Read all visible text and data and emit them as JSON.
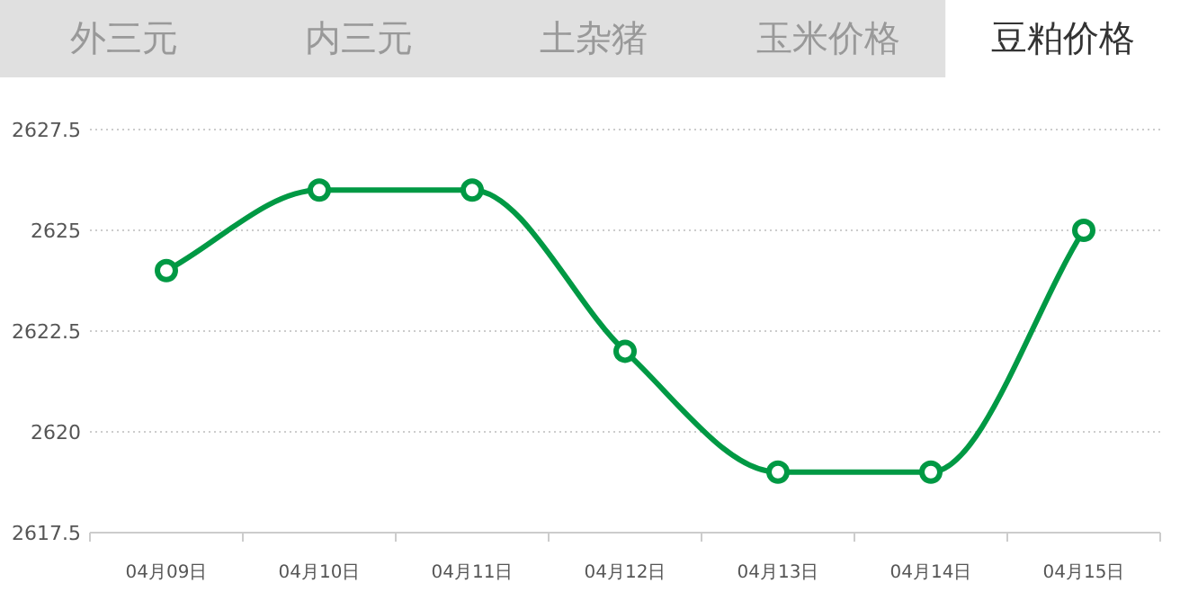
{
  "chart_data": [
    {
      "type": "other",
      "annotations": [
        "外三元",
        "内三元",
        "土杂猪",
        "玉米价格",
        "豆粕价格"
      ],
      "colors": [
        "#999999",
        "#999999",
        "#999999",
        "#999999",
        "#333333"
      ]
    },
    {
      "type": "line",
      "categories": [
        "04月09日",
        "04月10日",
        "04月11日",
        "04月12日",
        "04月13日",
        "04月14日",
        "04月15日"
      ],
      "series": [
        {
          "color": "#009944",
          "values": [
            2624,
            2626,
            2626,
            2622,
            2619,
            2619,
            2625
          ]
        }
      ],
      "ylim": [
        2617.5,
        2627.5
      ],
      "yticks": [
        2617.5,
        2620,
        2622.5,
        2625,
        2627.5
      ],
      "grid": "y",
      "marker": "circle",
      "line_style": "solid"
    }
  ]
}
